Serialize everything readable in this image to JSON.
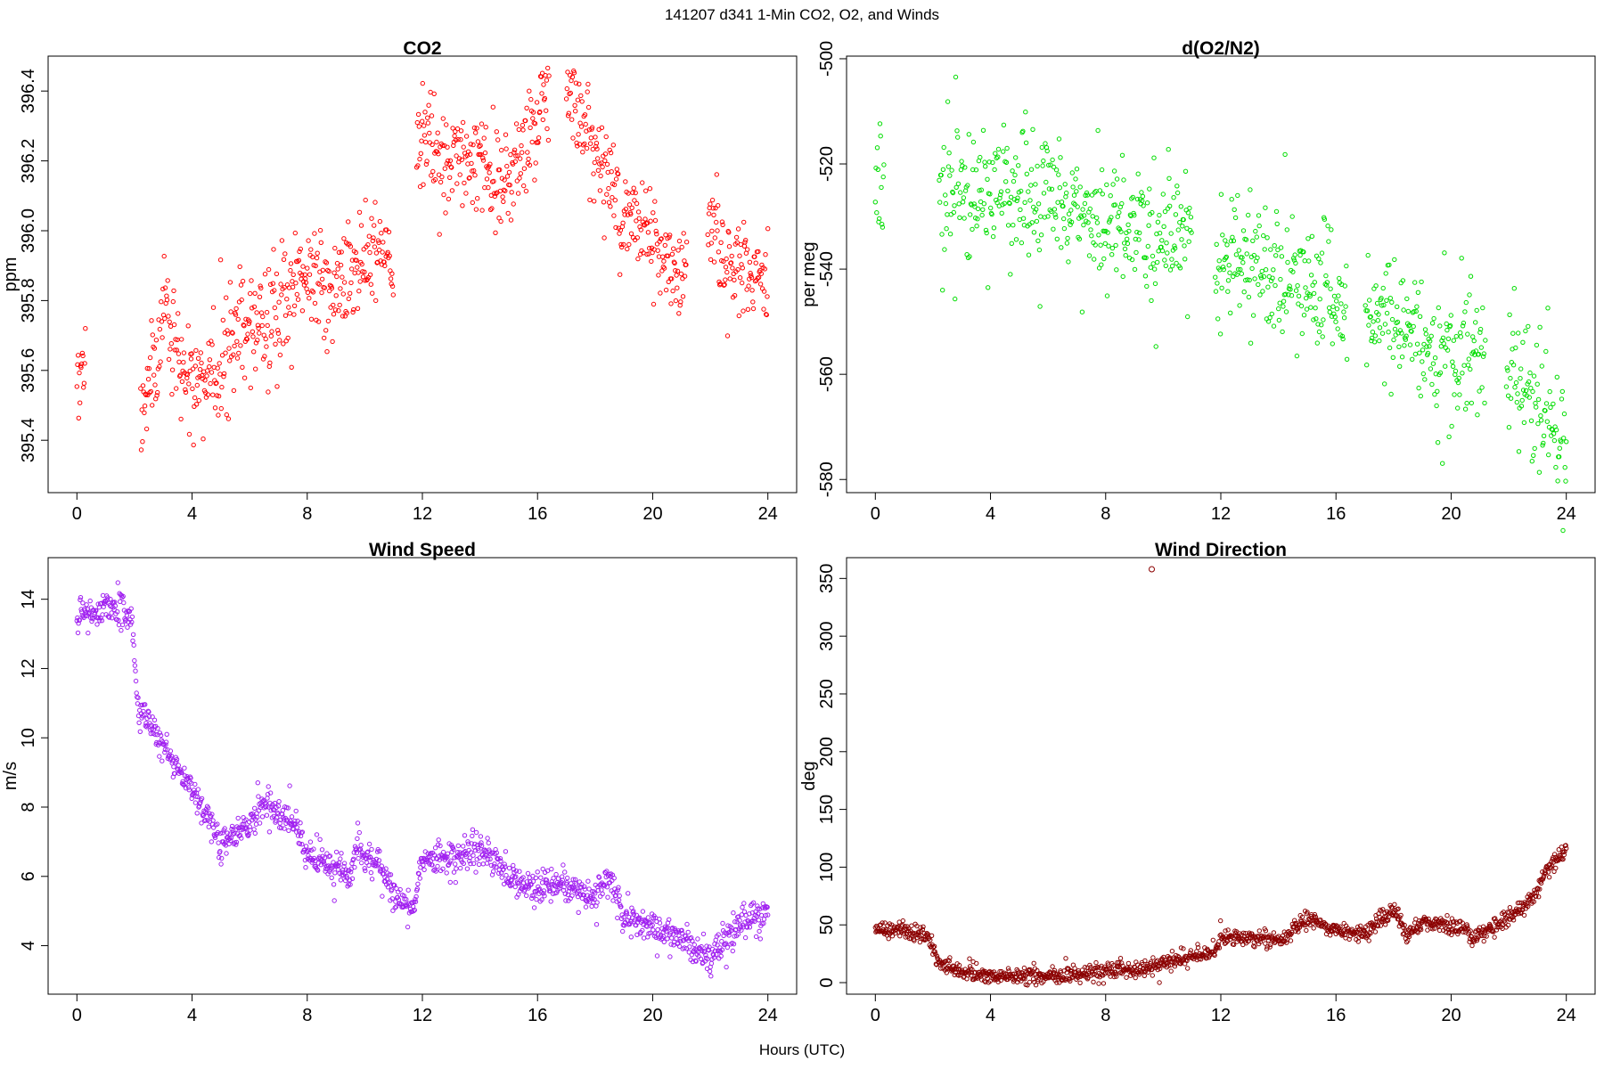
{
  "figure": {
    "title": "141207   d341   1-Min CO2, O2, and Winds",
    "xlabel": "Hours (UTC)"
  },
  "chart_data": [
    {
      "id": "co2",
      "type": "scatter",
      "title": "CO2",
      "xlabel": "",
      "ylabel": "ppm",
      "xlim": [
        -1,
        25
      ],
      "ylim": [
        395.25,
        396.5
      ],
      "xticks": [
        0,
        4,
        8,
        12,
        16,
        20,
        24
      ],
      "yticks": [
        395.4,
        395.6,
        395.8,
        396.0,
        396.2,
        396.4
      ],
      "ytick_labels": [
        "395.4",
        "395.6",
        "395.8",
        "396.0",
        "396.2",
        "396.4"
      ],
      "color": "#ff0000",
      "marker": "open-circle",
      "x_range": [
        0,
        24
      ],
      "gaps": [
        [
          0.3,
          2.2
        ],
        [
          11.0,
          11.8
        ],
        [
          16.4,
          17.0
        ],
        [
          21.2,
          21.9
        ]
      ],
      "trend": [
        [
          0.1,
          395.6
        ],
        [
          2.3,
          395.5
        ],
        [
          2.8,
          395.6
        ],
        [
          3.1,
          395.85
        ],
        [
          3.5,
          395.6
        ],
        [
          4.5,
          395.55
        ],
        [
          5.5,
          395.7
        ],
        [
          7.0,
          395.75
        ],
        [
          8.0,
          395.88
        ],
        [
          8.8,
          395.82
        ],
        [
          9.5,
          395.88
        ],
        [
          10.5,
          395.95
        ],
        [
          11.0,
          395.9
        ],
        [
          12.0,
          396.27
        ],
        [
          13.0,
          396.2
        ],
        [
          14.0,
          396.25
        ],
        [
          14.6,
          396.1
        ],
        [
          15.5,
          396.25
        ],
        [
          16.3,
          396.35
        ],
        [
          17.0,
          396.43
        ],
        [
          17.7,
          396.3
        ],
        [
          18.3,
          396.15
        ],
        [
          19.0,
          396.05
        ],
        [
          20.0,
          395.98
        ],
        [
          20.8,
          395.85
        ],
        [
          21.2,
          395.95
        ],
        [
          22.0,
          396.05
        ],
        [
          22.5,
          395.9
        ],
        [
          23.0,
          395.92
        ],
        [
          24.0,
          395.86
        ]
      ],
      "noise": 0.07,
      "spikes": 0.18,
      "n_points": 1150
    },
    {
      "id": "o2",
      "type": "scatter",
      "title": "d(O2/N2)",
      "xlabel": "",
      "ylabel": "per meg",
      "xlim": [
        -1,
        25
      ],
      "ylim": [
        -582.5,
        -499.5
      ],
      "xticks": [
        0,
        4,
        8,
        12,
        16,
        20,
        24
      ],
      "yticks": [
        -500,
        -520,
        -540,
        -560,
        -580
      ],
      "ytick_labels": [
        "-500",
        "-520",
        "-540",
        "-560",
        "-580"
      ],
      "color": "#00dd00",
      "marker": "open-circle",
      "x_range": [
        0,
        24
      ],
      "gaps": [
        [
          0.3,
          2.2
        ],
        [
          11.0,
          11.8
        ],
        [
          16.4,
          17.0
        ],
        [
          21.2,
          21.9
        ]
      ],
      "trend": [
        [
          0.1,
          -522
        ],
        [
          2.5,
          -524
        ],
        [
          4.0,
          -525
        ],
        [
          5.5,
          -527
        ],
        [
          7.0,
          -529
        ],
        [
          8.5,
          -532
        ],
        [
          10.0,
          -534
        ],
        [
          11.0,
          -533
        ],
        [
          12.0,
          -537
        ],
        [
          14.0,
          -541
        ],
        [
          16.0,
          -546
        ],
        [
          17.5,
          -549
        ],
        [
          19.0,
          -553
        ],
        [
          21.0,
          -557
        ],
        [
          22.0,
          -559
        ],
        [
          23.0,
          -565
        ],
        [
          24.0,
          -572
        ]
      ],
      "noise": 5.5,
      "spikes": 18,
      "n_points": 1050
    },
    {
      "id": "wind-speed",
      "type": "scatter",
      "title": "Wind Speed",
      "xlabel": "",
      "ylabel": "m/s",
      "xlim": [
        -1,
        25
      ],
      "ylim": [
        2.6,
        15.2
      ],
      "xticks": [
        0,
        4,
        8,
        12,
        16,
        20,
        24
      ],
      "yticks": [
        4,
        6,
        8,
        10,
        12,
        14
      ],
      "ytick_labels": [
        "4",
        "6",
        "8",
        "10",
        "12",
        "14"
      ],
      "color": "#a020f0",
      "marker": "open-circle",
      "x_range": [
        0,
        24
      ],
      "gaps": [],
      "trend": [
        [
          0.0,
          13.5
        ],
        [
          1.0,
          13.8
        ],
        [
          1.9,
          13.6
        ],
        [
          2.1,
          11.0
        ],
        [
          2.5,
          10.5
        ],
        [
          3.0,
          9.7
        ],
        [
          4.0,
          8.5
        ],
        [
          4.5,
          7.8
        ],
        [
          5.0,
          7.0
        ],
        [
          6.0,
          7.5
        ],
        [
          6.5,
          8.1
        ],
        [
          7.5,
          7.6
        ],
        [
          8.2,
          6.4
        ],
        [
          9.0,
          6.3
        ],
        [
          9.5,
          6.0
        ],
        [
          9.7,
          6.8
        ],
        [
          10.5,
          6.3
        ],
        [
          11.0,
          5.3
        ],
        [
          11.7,
          5.1
        ],
        [
          12.0,
          6.5
        ],
        [
          13.0,
          6.5
        ],
        [
          14.0,
          6.8
        ],
        [
          15.0,
          6.0
        ],
        [
          16.0,
          5.7
        ],
        [
          17.0,
          5.8
        ],
        [
          18.0,
          5.3
        ],
        [
          18.5,
          6.0
        ],
        [
          19.0,
          4.8
        ],
        [
          20.0,
          4.6
        ],
        [
          21.0,
          4.2
        ],
        [
          22.0,
          3.6
        ],
        [
          23.0,
          4.6
        ],
        [
          24.0,
          5.1
        ]
      ],
      "noise": 0.22,
      "spikes": 0.6,
      "n_points": 1300
    },
    {
      "id": "wind-direction",
      "type": "scatter",
      "title": "Wind Direction",
      "xlabel": "",
      "ylabel": "deg",
      "xlim": [
        -1,
        25
      ],
      "ylim": [
        -10,
        368
      ],
      "xticks": [
        0,
        4,
        8,
        12,
        16,
        20,
        24
      ],
      "yticks": [
        0,
        50,
        100,
        150,
        200,
        250,
        300,
        350
      ],
      "ytick_labels": [
        "0",
        "50",
        "100",
        "150",
        "200",
        "250",
        "300",
        "350"
      ],
      "color": "#8b0000",
      "marker": "open-circle",
      "x_range": [
        0,
        24
      ],
      "gaps": [],
      "trend": [
        [
          0.0,
          47
        ],
        [
          1.0,
          45
        ],
        [
          1.8,
          40
        ],
        [
          2.2,
          18
        ],
        [
          3.0,
          9
        ],
        [
          4.0,
          6
        ],
        [
          6.0,
          5
        ],
        [
          8.0,
          10
        ],
        [
          9.5,
          13
        ],
        [
          10.5,
          20
        ],
        [
          11.8,
          27
        ],
        [
          12.0,
          39
        ],
        [
          13.0,
          38
        ],
        [
          14.0,
          36
        ],
        [
          15.0,
          55
        ],
        [
          16.0,
          45
        ],
        [
          17.0,
          43
        ],
        [
          18.0,
          63
        ],
        [
          18.5,
          40
        ],
        [
          19.0,
          52
        ],
        [
          20.0,
          50
        ],
        [
          20.5,
          48
        ],
        [
          20.7,
          38
        ],
        [
          21.5,
          50
        ],
        [
          22.5,
          65
        ],
        [
          23.0,
          80
        ],
        [
          23.5,
          105
        ],
        [
          24.0,
          113
        ]
      ],
      "noise": 3.5,
      "spikes": 8,
      "outliers": [
        [
          9.6,
          358
        ]
      ],
      "n_points": 1300
    }
  ]
}
